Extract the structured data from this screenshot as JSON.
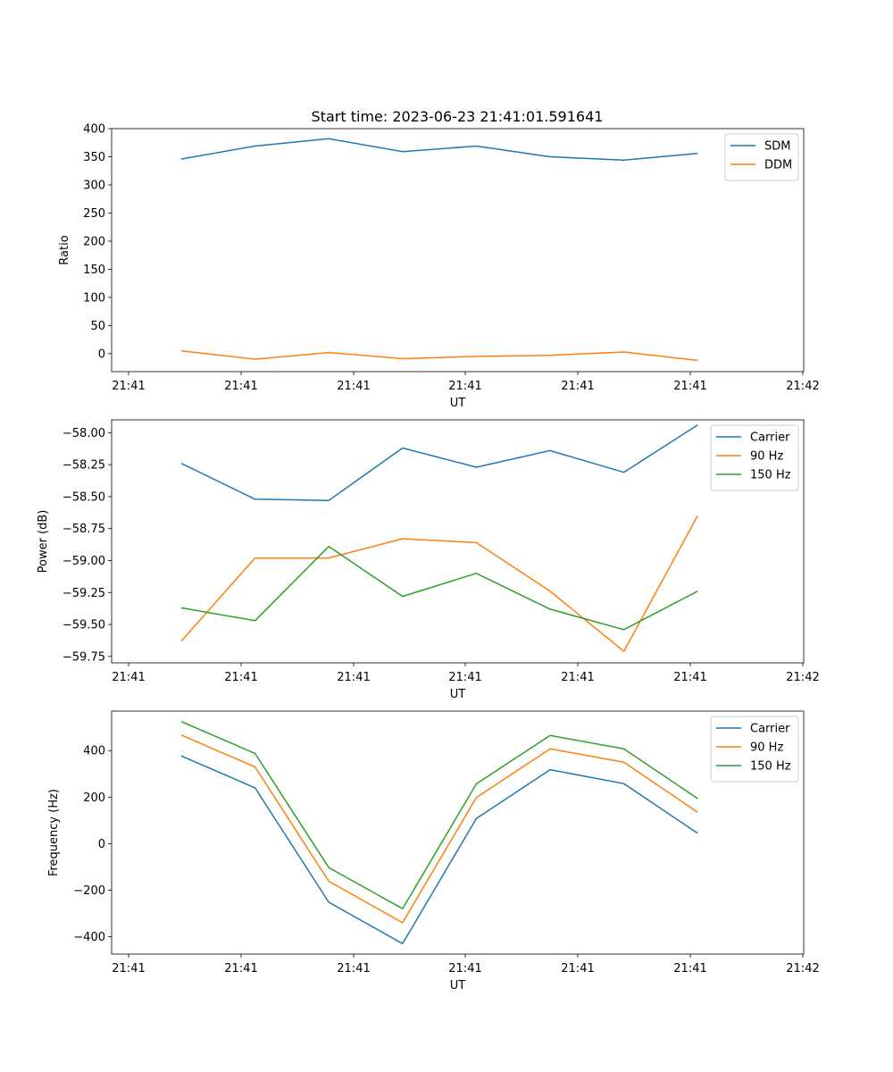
{
  "figure_title": "Start time: 2023-06-23 21:41:01.591641",
  "x_tick_labels": [
    "21:41",
    "21:41",
    "21:41",
    "21:41",
    "21:41",
    "21:41",
    "21:42"
  ],
  "chart_data": [
    {
      "type": "line",
      "title": "Start time: 2023-06-23 21:41:01.591641",
      "xlabel": "UT",
      "ylabel": "Ratio",
      "ylim": [
        -32,
        400
      ],
      "yticks": [
        0,
        50,
        100,
        150,
        200,
        250,
        300,
        350,
        400
      ],
      "ytick_labels": [
        "0",
        "50",
        "100",
        "150",
        "200",
        "250",
        "300",
        "350",
        "400"
      ],
      "legend_position": "top-right",
      "x": [
        1,
        2,
        3,
        4,
        5,
        6,
        7,
        8
      ],
      "series": [
        {
          "name": "SDM",
          "color": "#1f77b4",
          "values": [
            346,
            369,
            382,
            359,
            369,
            350,
            344,
            356
          ]
        },
        {
          "name": "DDM",
          "color": "#ff7f0e",
          "values": [
            5,
            -10,
            2,
            -9,
            -5,
            -3,
            3,
            -12
          ]
        }
      ]
    },
    {
      "type": "line",
      "xlabel": "UT",
      "ylabel": "Power (dB)",
      "ylim": [
        -59.8,
        -57.9
      ],
      "yticks": [
        -59.75,
        -59.5,
        -59.25,
        -59.0,
        -58.75,
        -58.5,
        -58.25,
        -58.0
      ],
      "ytick_labels": [
        "−59.75",
        "−59.50",
        "−59.25",
        "−59.00",
        "−58.75",
        "−58.50",
        "−58.25",
        "−58.00"
      ],
      "legend_position": "top-right",
      "x": [
        1,
        2,
        3,
        4,
        5,
        6,
        7,
        8
      ],
      "series": [
        {
          "name": "Carrier",
          "color": "#1f77b4",
          "values": [
            -58.24,
            -58.52,
            -58.53,
            -58.12,
            -58.27,
            -58.14,
            -58.31,
            -57.94
          ]
        },
        {
          "name": "90 Hz",
          "color": "#ff7f0e",
          "values": [
            -59.63,
            -58.98,
            -58.98,
            -58.83,
            -58.86,
            -59.24,
            -59.71,
            -58.65
          ]
        },
        {
          "name": "150 Hz",
          "color": "#2ca02c",
          "values": [
            -59.37,
            -59.47,
            -58.89,
            -59.28,
            -59.1,
            -59.38,
            -59.54,
            -59.24
          ]
        }
      ]
    },
    {
      "type": "line",
      "xlabel": "UT",
      "ylabel": "Frequency (Hz)",
      "ylim": [
        -475,
        570
      ],
      "yticks": [
        -400,
        -200,
        0,
        200,
        400
      ],
      "ytick_labels": [
        "−400",
        "−200",
        "0",
        "200",
        "400"
      ],
      "legend_position": "top-right",
      "x": [
        1,
        2,
        3,
        4,
        5,
        6,
        7,
        8
      ],
      "series": [
        {
          "name": "Carrier",
          "color": "#1f77b4",
          "values": [
            377,
            240,
            -252,
            -430,
            108,
            318,
            258,
            45
          ]
        },
        {
          "name": "90 Hz",
          "color": "#ff7f0e",
          "values": [
            467,
            330,
            -162,
            -340,
            198,
            408,
            350,
            135
          ]
        },
        {
          "name": "150 Hz",
          "color": "#2ca02c",
          "values": [
            525,
            388,
            -103,
            -280,
            257,
            465,
            408,
            194
          ]
        }
      ]
    }
  ]
}
